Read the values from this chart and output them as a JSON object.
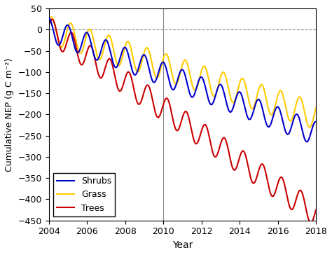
{
  "t_start": 2004,
  "t_end": 2018,
  "n_points": 1400,
  "shrubs": {
    "trend_slope": -17.5,
    "seasonal_amp": 28,
    "seasonal_phase": 0.25,
    "color": "#0000CC",
    "label": "Shrubs",
    "linewidth": 1.5
  },
  "grass": {
    "trend_slope": -14.5,
    "seasonal_amp": 32,
    "seasonal_phase": 0.1,
    "color": "#FFCC00",
    "label": "Grass",
    "linewidth": 1.5
  },
  "trees": {
    "trend_slope": -31.0,
    "seasonal_amp": 30,
    "seasonal_phase": 0.05,
    "color": "#CC0000",
    "label": "Trees",
    "linewidth": 1.5
  },
  "xlim": [
    2004,
    2018
  ],
  "ylim": [
    -450,
    50
  ],
  "yticks": [
    50,
    0,
    -50,
    -100,
    -150,
    -200,
    -250,
    -300,
    -350,
    -400,
    -450
  ],
  "xticks": [
    2004,
    2006,
    2008,
    2010,
    2012,
    2014,
    2016,
    2018
  ],
  "xlabel": "Year",
  "ylabel": "Cumulative NEP (g C m⁻²)",
  "hline_y": 0,
  "hline_color": "#888888",
  "vline_x": 2010,
  "vline_color": "#888888",
  "background_color": "#ffffff",
  "legend_loc": "lower left",
  "figsize": [
    4.74,
    3.64
  ],
  "dpi": 100
}
